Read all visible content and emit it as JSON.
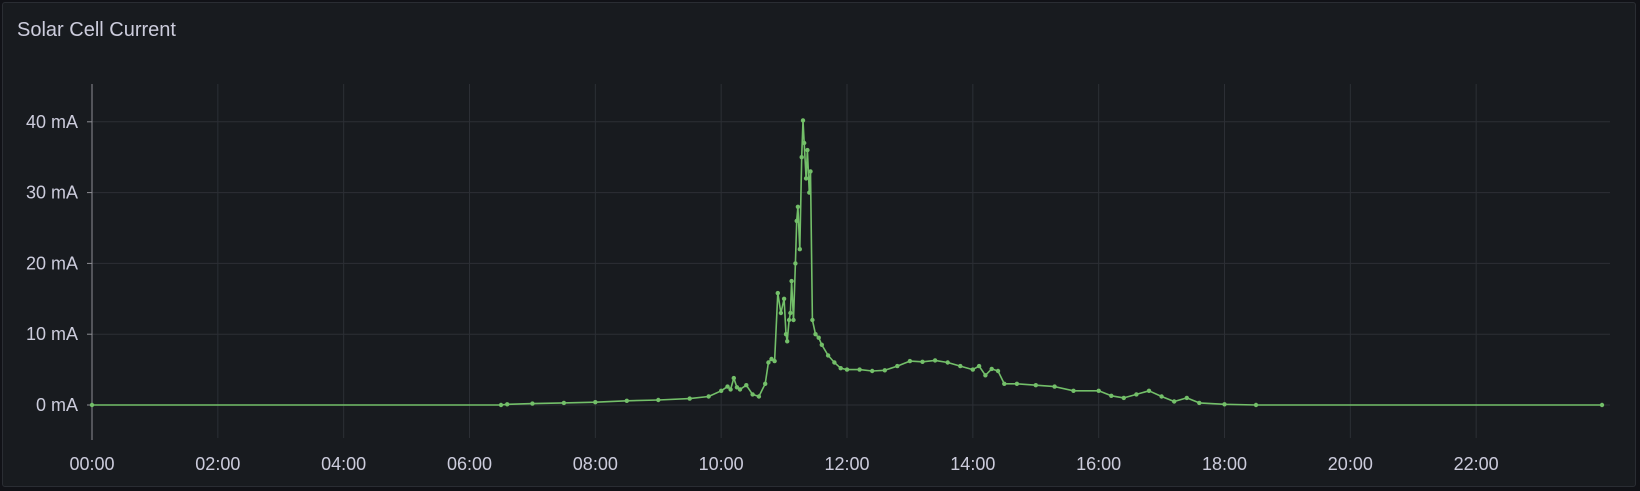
{
  "panel": {
    "title": "Solar Cell Current"
  },
  "colors": {
    "background": "#181b1f",
    "grid": "#2c2f35",
    "series": "#73bf69",
    "text": "#ccccdc"
  },
  "chart_data": {
    "type": "line",
    "title": "Solar Cell Current",
    "xlabel": "",
    "ylabel": "",
    "grid": true,
    "xlim": [
      0,
      24
    ],
    "ylim": [
      -4,
      45
    ],
    "x_ticks": [
      "00:00",
      "02:00",
      "04:00",
      "06:00",
      "08:00",
      "10:00",
      "12:00",
      "14:00",
      "16:00",
      "18:00",
      "20:00",
      "22:00"
    ],
    "y_ticks": [
      "0 mA",
      "10 mA",
      "20 mA",
      "30 mA",
      "40 mA"
    ],
    "y_tick_values": [
      0,
      10,
      20,
      30,
      40
    ],
    "series": [
      {
        "points": [
          [
            0,
            0
          ],
          [
            6.5,
            0
          ],
          [
            6.6,
            0.1
          ],
          [
            7,
            0.2
          ],
          [
            7.5,
            0.3
          ],
          [
            8,
            0.4
          ],
          [
            8.5,
            0.6
          ],
          [
            9,
            0.7
          ],
          [
            9.5,
            0.9
          ],
          [
            9.8,
            1.2
          ],
          [
            10,
            2
          ],
          [
            10.1,
            2.6
          ],
          [
            10.15,
            2.2
          ],
          [
            10.2,
            3.8
          ],
          [
            10.25,
            2.5
          ],
          [
            10.3,
            2.2
          ],
          [
            10.4,
            2.8
          ],
          [
            10.5,
            1.5
          ],
          [
            10.6,
            1.2
          ],
          [
            10.7,
            3
          ],
          [
            10.75,
            6
          ],
          [
            10.8,
            6.5
          ],
          [
            10.85,
            6.2
          ],
          [
            10.9,
            15.8
          ],
          [
            10.95,
            13
          ],
          [
            11,
            15
          ],
          [
            11.03,
            10
          ],
          [
            11.05,
            9
          ],
          [
            11.08,
            12
          ],
          [
            11.1,
            13
          ],
          [
            11.12,
            17.5
          ],
          [
            11.15,
            12
          ],
          [
            11.18,
            20
          ],
          [
            11.2,
            26
          ],
          [
            11.22,
            28
          ],
          [
            11.25,
            22
          ],
          [
            11.28,
            35
          ],
          [
            11.3,
            40.2
          ],
          [
            11.32,
            37
          ],
          [
            11.35,
            32
          ],
          [
            11.37,
            36
          ],
          [
            11.4,
            30
          ],
          [
            11.42,
            33
          ],
          [
            11.45,
            12
          ],
          [
            11.5,
            10
          ],
          [
            11.55,
            9.5
          ],
          [
            11.6,
            8.5
          ],
          [
            11.7,
            7
          ],
          [
            11.8,
            6
          ],
          [
            11.9,
            5.2
          ],
          [
            12,
            5
          ],
          [
            12.2,
            5
          ],
          [
            12.4,
            4.8
          ],
          [
            12.6,
            4.9
          ],
          [
            12.8,
            5.5
          ],
          [
            13,
            6.2
          ],
          [
            13.2,
            6.1
          ],
          [
            13.4,
            6.3
          ],
          [
            13.6,
            6
          ],
          [
            13.8,
            5.5
          ],
          [
            14,
            5
          ],
          [
            14.1,
            5.5
          ],
          [
            14.2,
            4.2
          ],
          [
            14.3,
            5.1
          ],
          [
            14.4,
            4.8
          ],
          [
            14.5,
            3
          ],
          [
            14.7,
            3
          ],
          [
            15,
            2.8
          ],
          [
            15.3,
            2.6
          ],
          [
            15.6,
            2
          ],
          [
            16,
            2
          ],
          [
            16.2,
            1.3
          ],
          [
            16.4,
            1
          ],
          [
            16.6,
            1.5
          ],
          [
            16.8,
            2
          ],
          [
            17,
            1.2
          ],
          [
            17.2,
            0.5
          ],
          [
            17.4,
            1
          ],
          [
            17.6,
            0.3
          ],
          [
            18,
            0.1
          ],
          [
            18.5,
            0
          ],
          [
            24,
            0
          ]
        ]
      }
    ]
  }
}
